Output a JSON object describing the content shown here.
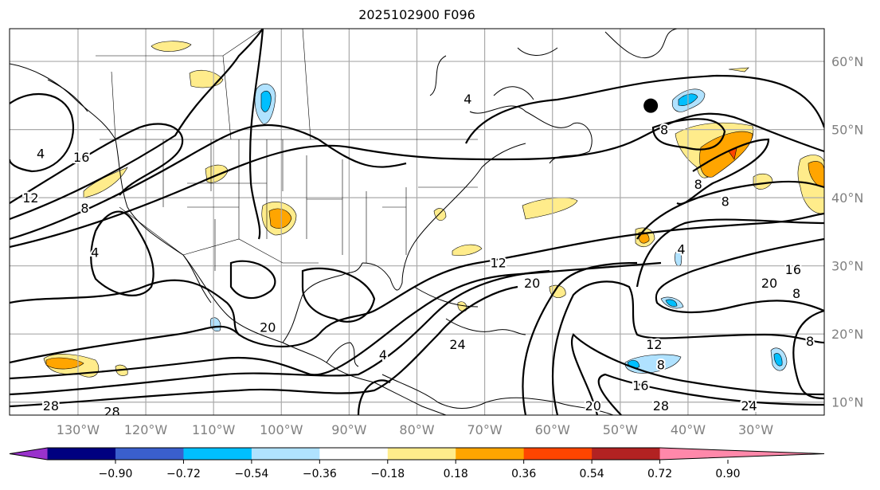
{
  "title": "2025102900 F096",
  "map": {
    "extent_lon": [
      -140.1,
      -19.9
    ],
    "extent_lat": [
      8.1,
      64.8
    ],
    "lon_labels": [
      {
        "lon": -130,
        "label": "130°W"
      },
      {
        "lon": -120,
        "label": "120°W"
      },
      {
        "lon": -110,
        "label": "110°W"
      },
      {
        "lon": -100,
        "label": "100°W"
      },
      {
        "lon": -90,
        "label": "90°W"
      },
      {
        "lon": -80,
        "label": "80°W"
      },
      {
        "lon": -70,
        "label": "70°W"
      },
      {
        "lon": -60,
        "label": "60°W"
      },
      {
        "lon": -50,
        "label": "50°W"
      },
      {
        "lon": -40,
        "label": "40°W"
      },
      {
        "lon": -30,
        "label": "30°W"
      }
    ],
    "lat_labels": [
      {
        "lat": 60,
        "label": "60°N"
      },
      {
        "lat": 50,
        "label": "50°N"
      },
      {
        "lat": 40,
        "label": "40°N"
      },
      {
        "lat": 30,
        "label": "30°N"
      },
      {
        "lat": 20,
        "label": "20°N"
      },
      {
        "lat": 10,
        "label": "10°N"
      }
    ],
    "contour_labels": [
      {
        "text": "4",
        "lon": -135.5,
        "lat": 46.5
      },
      {
        "text": "16",
        "lon": -129.5,
        "lat": 46
      },
      {
        "text": "12",
        "lon": -137,
        "lat": 40
      },
      {
        "text": "8",
        "lon": -129,
        "lat": 38.5
      },
      {
        "text": "4",
        "lon": -127.5,
        "lat": 32
      },
      {
        "text": "4",
        "lon": -72.5,
        "lat": 54.5
      },
      {
        "text": "8",
        "lon": -43.5,
        "lat": 50
      },
      {
        "text": "8",
        "lon": -38.5,
        "lat": 42
      },
      {
        "text": "8",
        "lon": -34.5,
        "lat": 39.5
      },
      {
        "text": "4",
        "lon": -41,
        "lat": 32.5
      },
      {
        "text": "12",
        "lon": -68,
        "lat": 30.5
      },
      {
        "text": "20",
        "lon": -63,
        "lat": 27.5
      },
      {
        "text": "20",
        "lon": -28,
        "lat": 27.5
      },
      {
        "text": "16",
        "lon": -24.5,
        "lat": 29.5
      },
      {
        "text": "8",
        "lon": -24,
        "lat": 26
      },
      {
        "text": "20",
        "lon": -102,
        "lat": 21
      },
      {
        "text": "24",
        "lon": -74,
        "lat": 18.5
      },
      {
        "text": "4",
        "lon": -85,
        "lat": 17
      },
      {
        "text": "12",
        "lon": -45,
        "lat": 18.5
      },
      {
        "text": "8",
        "lon": -44,
        "lat": 15.5
      },
      {
        "text": "16",
        "lon": -47,
        "lat": 12.5
      },
      {
        "text": "20",
        "lon": -54,
        "lat": 9.5
      },
      {
        "text": "28",
        "lon": -44,
        "lat": 9.5
      },
      {
        "text": "24",
        "lon": -31,
        "lat": 9.5
      },
      {
        "text": "28",
        "lon": -134,
        "lat": 9.5
      },
      {
        "text": "28",
        "lon": -125,
        "lat": 8.6
      },
      {
        "text": "8",
        "lon": -22,
        "lat": 19
      }
    ],
    "marker": {
      "lon": -45.5,
      "lat": 53.5
    }
  },
  "colorbar": {
    "colors": [
      "#9932cc",
      "#000080",
      "#3a5fcd",
      "#00bfff",
      "#b0e2ff",
      "#ffffff",
      "#ffec8b",
      "#ffa500",
      "#ff4500",
      "#b22222",
      "#ff88aa"
    ],
    "ticks": [
      "−0.90",
      "−0.72",
      "−0.54",
      "−0.36",
      "−0.18",
      "0.18",
      "0.36",
      "0.54",
      "0.72",
      "0.90"
    ]
  }
}
